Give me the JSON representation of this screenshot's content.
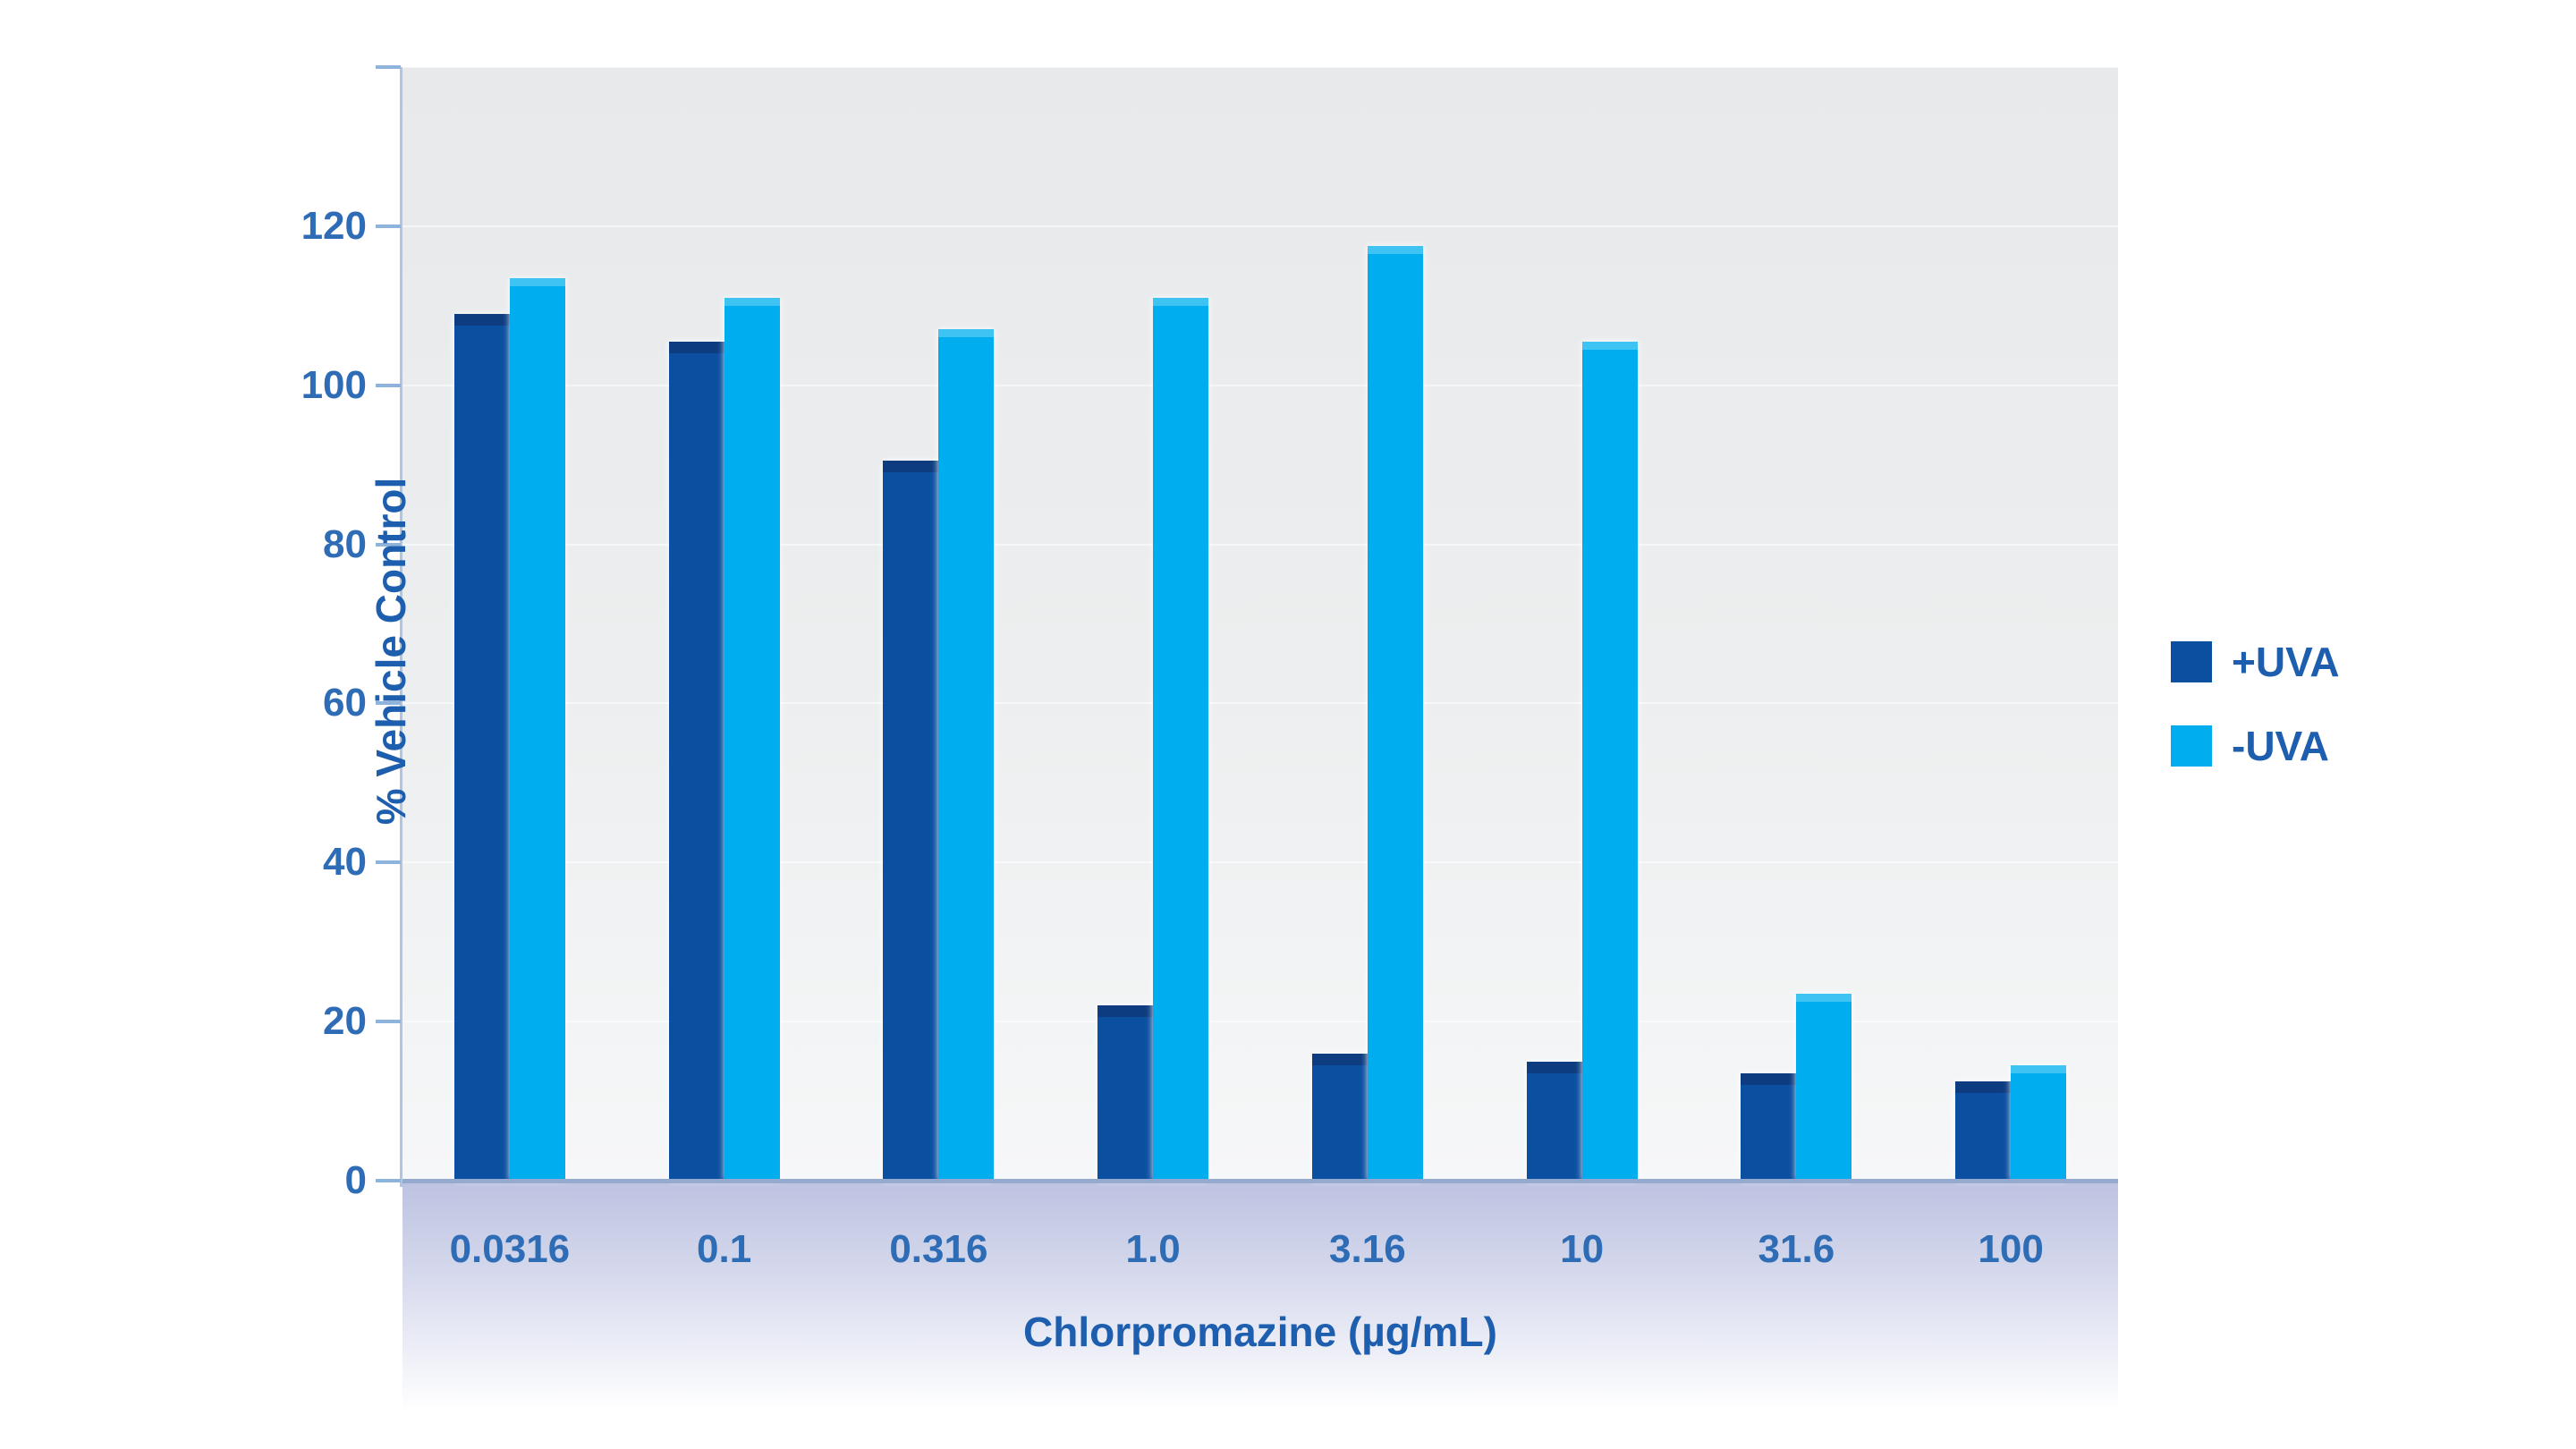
{
  "chart_data": {
    "type": "bar",
    "title": "",
    "xlabel": "Chlorpromazine (µg/mL)",
    "ylabel": "% Vehicle Control",
    "categories": [
      "0.0316",
      "0.1",
      "0.316",
      "1.0",
      "3.16",
      "10",
      "31.6",
      "100"
    ],
    "series": [
      {
        "name": "+UVA",
        "color": "#0b4fa0",
        "values": [
          109,
          105.5,
          90.5,
          22,
          16,
          15,
          13.5,
          12.5
        ]
      },
      {
        "name": "-UVA",
        "color": "#00aeef",
        "values": [
          113.5,
          111,
          107,
          111,
          117.5,
          105.5,
          23.5,
          14.5
        ]
      }
    ],
    "y_ticks": [
      0,
      20,
      40,
      60,
      80,
      100,
      120
    ],
    "ylim": [
      0,
      140
    ],
    "grid": false,
    "legend_position": "right"
  },
  "legend": {
    "entries": [
      {
        "label": "+UVA",
        "color": "#0b4fa0"
      },
      {
        "label": "-UVA",
        "color": "#00aeef"
      }
    ]
  },
  "colors": {
    "bar_dark_blue": "#0b4fa0",
    "bar_light_blue": "#00aeef",
    "tick_label_blue": "#2e6cb5",
    "title_blue": "#1d5fae",
    "axis_line": "#96a9cf",
    "band_lavender": "#bdc3e1",
    "plot_background": "#e8eaec"
  }
}
